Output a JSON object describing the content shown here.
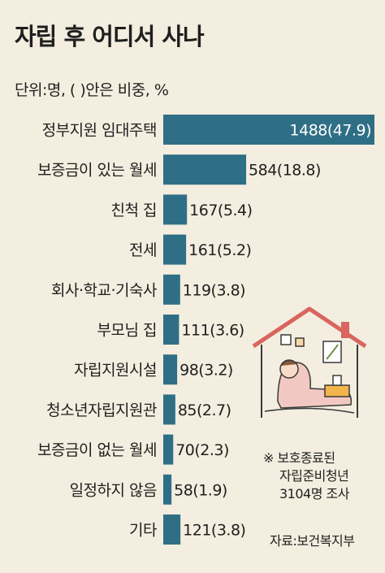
{
  "title": "자립 후 어디서 사나",
  "unit": "단위:명, ( )안은 비중, %",
  "note": {
    "line1": "※ 보호종료된",
    "line2": "자립준비청년",
    "line3": "3104명 조사"
  },
  "source": "자료:보건복지부",
  "colors": {
    "bar": "#2f6f86",
    "background": "#f3eedf",
    "roof": "#d9655f"
  },
  "chart_data": {
    "type": "bar",
    "orientation": "horizontal",
    "categories": [
      "정부지원 임대주택",
      "보증금이 있는 월세",
      "친척 집",
      "전세",
      "회사·학교·기숙사",
      "부모님 집",
      "자립지원시설",
      "청소년자립지원관",
      "보증금이 없는 월세",
      "일정하지 않음",
      "기타"
    ],
    "values": [
      1488,
      584,
      167,
      161,
      119,
      111,
      98,
      85,
      70,
      58,
      121
    ],
    "value_labels": [
      "1488(47.9)",
      "584(18.8)",
      "167(5.4)",
      "161(5.2)",
      "119(3.8)",
      "111(3.6)",
      "98(3.2)",
      "85(2.7)",
      "70(2.3)",
      "58(1.9)",
      "121(3.8)"
    ],
    "percent": [
      47.9,
      18.8,
      5.4,
      5.2,
      3.8,
      3.6,
      3.2,
      2.7,
      2.3,
      1.9,
      3.8
    ]
  }
}
